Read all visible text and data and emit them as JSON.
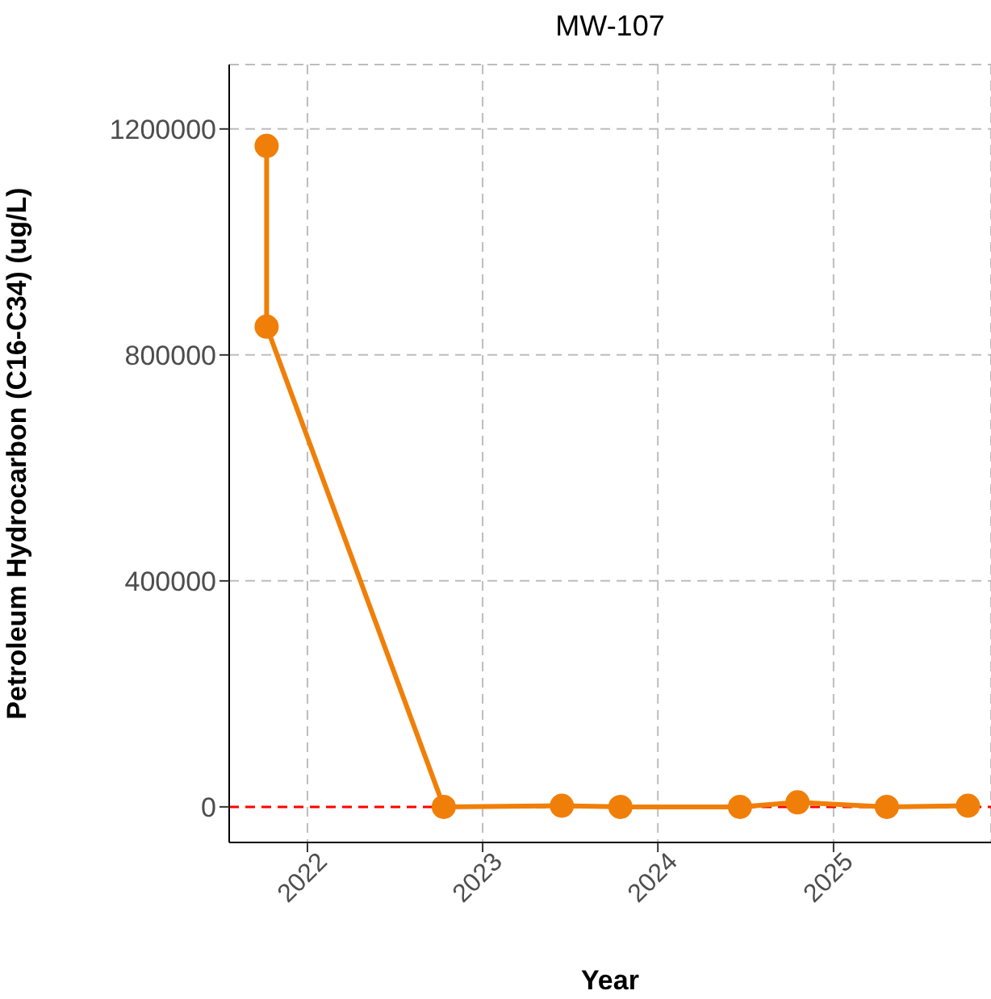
{
  "chart_data": {
    "type": "line",
    "title": "MW-107",
    "xlabel": "Year",
    "ylabel": "Petroleum Hydrocarbon (C16-C34) (ug/L)",
    "x": [
      "2021-10-08",
      "2021-10-08",
      "2022-10-12",
      "2023-06-15",
      "2023-10-15",
      "2024-06-20",
      "2024-10-18",
      "2025-04-22",
      "2025-10-08"
    ],
    "series": [
      {
        "color": "#f07f09",
        "values": [
          1170000,
          850000,
          0,
          2000,
          0,
          0,
          8000,
          0,
          2000
        ]
      }
    ],
    "xlim": [
      "2021-07-22",
      "2025-11-25"
    ],
    "xticks": [
      "2022",
      "2023",
      "2024",
      "2025"
    ],
    "ylim": [
      -63000,
      1314000
    ],
    "yticks": [
      0,
      400000,
      800000,
      1200000
    ],
    "ref_lines": [
      {
        "axis": "y",
        "value": 0,
        "color": "#ff0000",
        "line_style": "dashed"
      }
    ],
    "grid": true,
    "marker": "circle",
    "line_style": "solid",
    "legend": false
  }
}
